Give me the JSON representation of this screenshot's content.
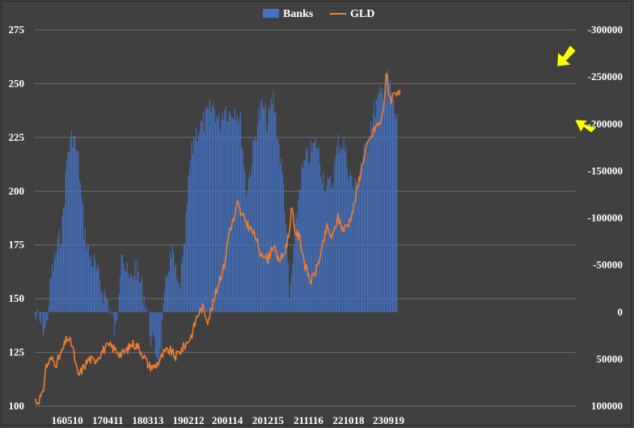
{
  "chart_data": {
    "type": "bar+line",
    "title": "",
    "legend": {
      "placement": "top-center",
      "entries": [
        {
          "name": "Banks",
          "color": "#4472C4",
          "kind": "bar"
        },
        {
          "name": "GLD",
          "color": "#ED7D31",
          "kind": "line"
        }
      ]
    },
    "grid": true,
    "left_axis": {
      "series": "GLD",
      "ylim": [
        100,
        275
      ],
      "ticks": [
        "100",
        "125",
        "150",
        "175",
        "200",
        "225",
        "250",
        "275"
      ]
    },
    "right_axis": {
      "series": "Banks",
      "reversed": true,
      "ylim": [
        -300000,
        100000
      ],
      "ticks": [
        "100000",
        "50000",
        "0",
        "-50000",
        "-100000",
        "-150000",
        "-200000",
        "-250000",
        "-300000"
      ]
    },
    "x_axis": {
      "tick_labels": [
        "160510",
        "170411",
        "180313",
        "190212",
        "200114",
        "201215",
        "211116",
        "221018",
        "230919"
      ],
      "period": "weekly, 2016-2024"
    },
    "x_tick_positions": [
      0.06,
      0.135,
      0.209,
      0.284,
      0.356,
      0.431,
      0.506,
      0.58,
      0.654
    ],
    "banks_anchors": [
      [
        0,
        5000
      ],
      [
        0.02,
        20000
      ],
      [
        0.03,
        -40000
      ],
      [
        0.05,
        -90000
      ],
      [
        0.06,
        -170000
      ],
      [
        0.07,
        -190000
      ],
      [
        0.08,
        -160000
      ],
      [
        0.09,
        -90000
      ],
      [
        0.1,
        -60000
      ],
      [
        0.11,
        -50000
      ],
      [
        0.12,
        -30000
      ],
      [
        0.135,
        -10000
      ],
      [
        0.15,
        25000
      ],
      [
        0.16,
        -80000
      ],
      [
        0.165,
        -50000
      ],
      [
        0.175,
        -30000
      ],
      [
        0.185,
        -50000
      ],
      [
        0.195,
        -30000
      ],
      [
        0.205,
        -10000
      ],
      [
        0.215,
        30000
      ],
      [
        0.23,
        50000
      ],
      [
        0.245,
        -50000
      ],
      [
        0.255,
        -60000
      ],
      [
        0.265,
        -20000
      ],
      [
        0.275,
        -60000
      ],
      [
        0.285,
        -150000
      ],
      [
        0.295,
        -190000
      ],
      [
        0.31,
        -200000
      ],
      [
        0.32,
        -210000
      ],
      [
        0.33,
        -220000
      ],
      [
        0.34,
        -200000
      ],
      [
        0.35,
        -220000
      ],
      [
        0.36,
        -210000
      ],
      [
        0.37,
        -220000
      ],
      [
        0.38,
        -200000
      ],
      [
        0.39,
        -130000
      ],
      [
        0.4,
        -160000
      ],
      [
        0.41,
        -200000
      ],
      [
        0.42,
        -220000
      ],
      [
        0.43,
        -200000
      ],
      [
        0.44,
        -230000
      ],
      [
        0.45,
        -180000
      ],
      [
        0.46,
        -130000
      ],
      [
        0.465,
        -80000
      ],
      [
        0.47,
        -10000
      ],
      [
        0.48,
        -80000
      ],
      [
        0.49,
        -140000
      ],
      [
        0.5,
        -160000
      ],
      [
        0.51,
        -170000
      ],
      [
        0.52,
        -180000
      ],
      [
        0.53,
        -150000
      ],
      [
        0.54,
        -130000
      ],
      [
        0.55,
        -140000
      ],
      [
        0.56,
        -180000
      ],
      [
        0.57,
        -180000
      ],
      [
        0.58,
        -150000
      ],
      [
        0.59,
        -130000
      ],
      [
        0.6,
        -150000
      ],
      [
        0.61,
        -170000
      ],
      [
        0.62,
        -200000
      ],
      [
        0.63,
        -220000
      ],
      [
        0.64,
        -230000
      ],
      [
        0.65,
        -250000
      ],
      [
        0.66,
        -230000
      ],
      [
        0.665,
        -210000
      ],
      [
        0.671,
        -200000
      ]
    ],
    "gld_anchors": [
      [
        0,
        103
      ],
      [
        0.005,
        102
      ],
      [
        0.01,
        104
      ],
      [
        0.015,
        105
      ],
      [
        0.02,
        118
      ],
      [
        0.03,
        122
      ],
      [
        0.04,
        120
      ],
      [
        0.05,
        125
      ],
      [
        0.06,
        132
      ],
      [
        0.07,
        128
      ],
      [
        0.075,
        120
      ],
      [
        0.08,
        114
      ],
      [
        0.09,
        118
      ],
      [
        0.1,
        122
      ],
      [
        0.11,
        121
      ],
      [
        0.12,
        124
      ],
      [
        0.13,
        127
      ],
      [
        0.14,
        128
      ],
      [
        0.15,
        126
      ],
      [
        0.16,
        124
      ],
      [
        0.17,
        126
      ],
      [
        0.18,
        129
      ],
      [
        0.19,
        128
      ],
      [
        0.2,
        124
      ],
      [
        0.21,
        119
      ],
      [
        0.22,
        118
      ],
      [
        0.23,
        121
      ],
      [
        0.24,
        125
      ],
      [
        0.25,
        126
      ],
      [
        0.26,
        123
      ],
      [
        0.27,
        126
      ],
      [
        0.28,
        129
      ],
      [
        0.29,
        133
      ],
      [
        0.3,
        142
      ],
      [
        0.31,
        146
      ],
      [
        0.32,
        140
      ],
      [
        0.33,
        148
      ],
      [
        0.34,
        158
      ],
      [
        0.35,
        165
      ],
      [
        0.355,
        174
      ],
      [
        0.36,
        182
      ],
      [
        0.37,
        188
      ],
      [
        0.375,
        195
      ],
      [
        0.38,
        190
      ],
      [
        0.39,
        186
      ],
      [
        0.4,
        182
      ],
      [
        0.41,
        178
      ],
      [
        0.415,
        170
      ],
      [
        0.42,
        172
      ],
      [
        0.43,
        168
      ],
      [
        0.44,
        175
      ],
      [
        0.45,
        168
      ],
      [
        0.46,
        170
      ],
      [
        0.47,
        180
      ],
      [
        0.475,
        193
      ],
      [
        0.48,
        182
      ],
      [
        0.49,
        178
      ],
      [
        0.5,
        165
      ],
      [
        0.51,
        158
      ],
      [
        0.52,
        163
      ],
      [
        0.53,
        172
      ],
      [
        0.54,
        183
      ],
      [
        0.55,
        178
      ],
      [
        0.56,
        188
      ],
      [
        0.57,
        182
      ],
      [
        0.58,
        185
      ],
      [
        0.59,
        193
      ],
      [
        0.6,
        206
      ],
      [
        0.61,
        218
      ],
      [
        0.62,
        224
      ],
      [
        0.63,
        230
      ],
      [
        0.64,
        232
      ],
      [
        0.645,
        240
      ],
      [
        0.65,
        255
      ],
      [
        0.655,
        245
      ],
      [
        0.66,
        242
      ],
      [
        0.665,
        248
      ],
      [
        0.67,
        244
      ],
      [
        0.675,
        246
      ]
    ],
    "annotations": [
      {
        "kind": "arrow",
        "color": "#FFFF00",
        "target": "GLD peak"
      },
      {
        "kind": "arrow",
        "color": "#FFFF00",
        "target": "Banks latest"
      }
    ]
  }
}
